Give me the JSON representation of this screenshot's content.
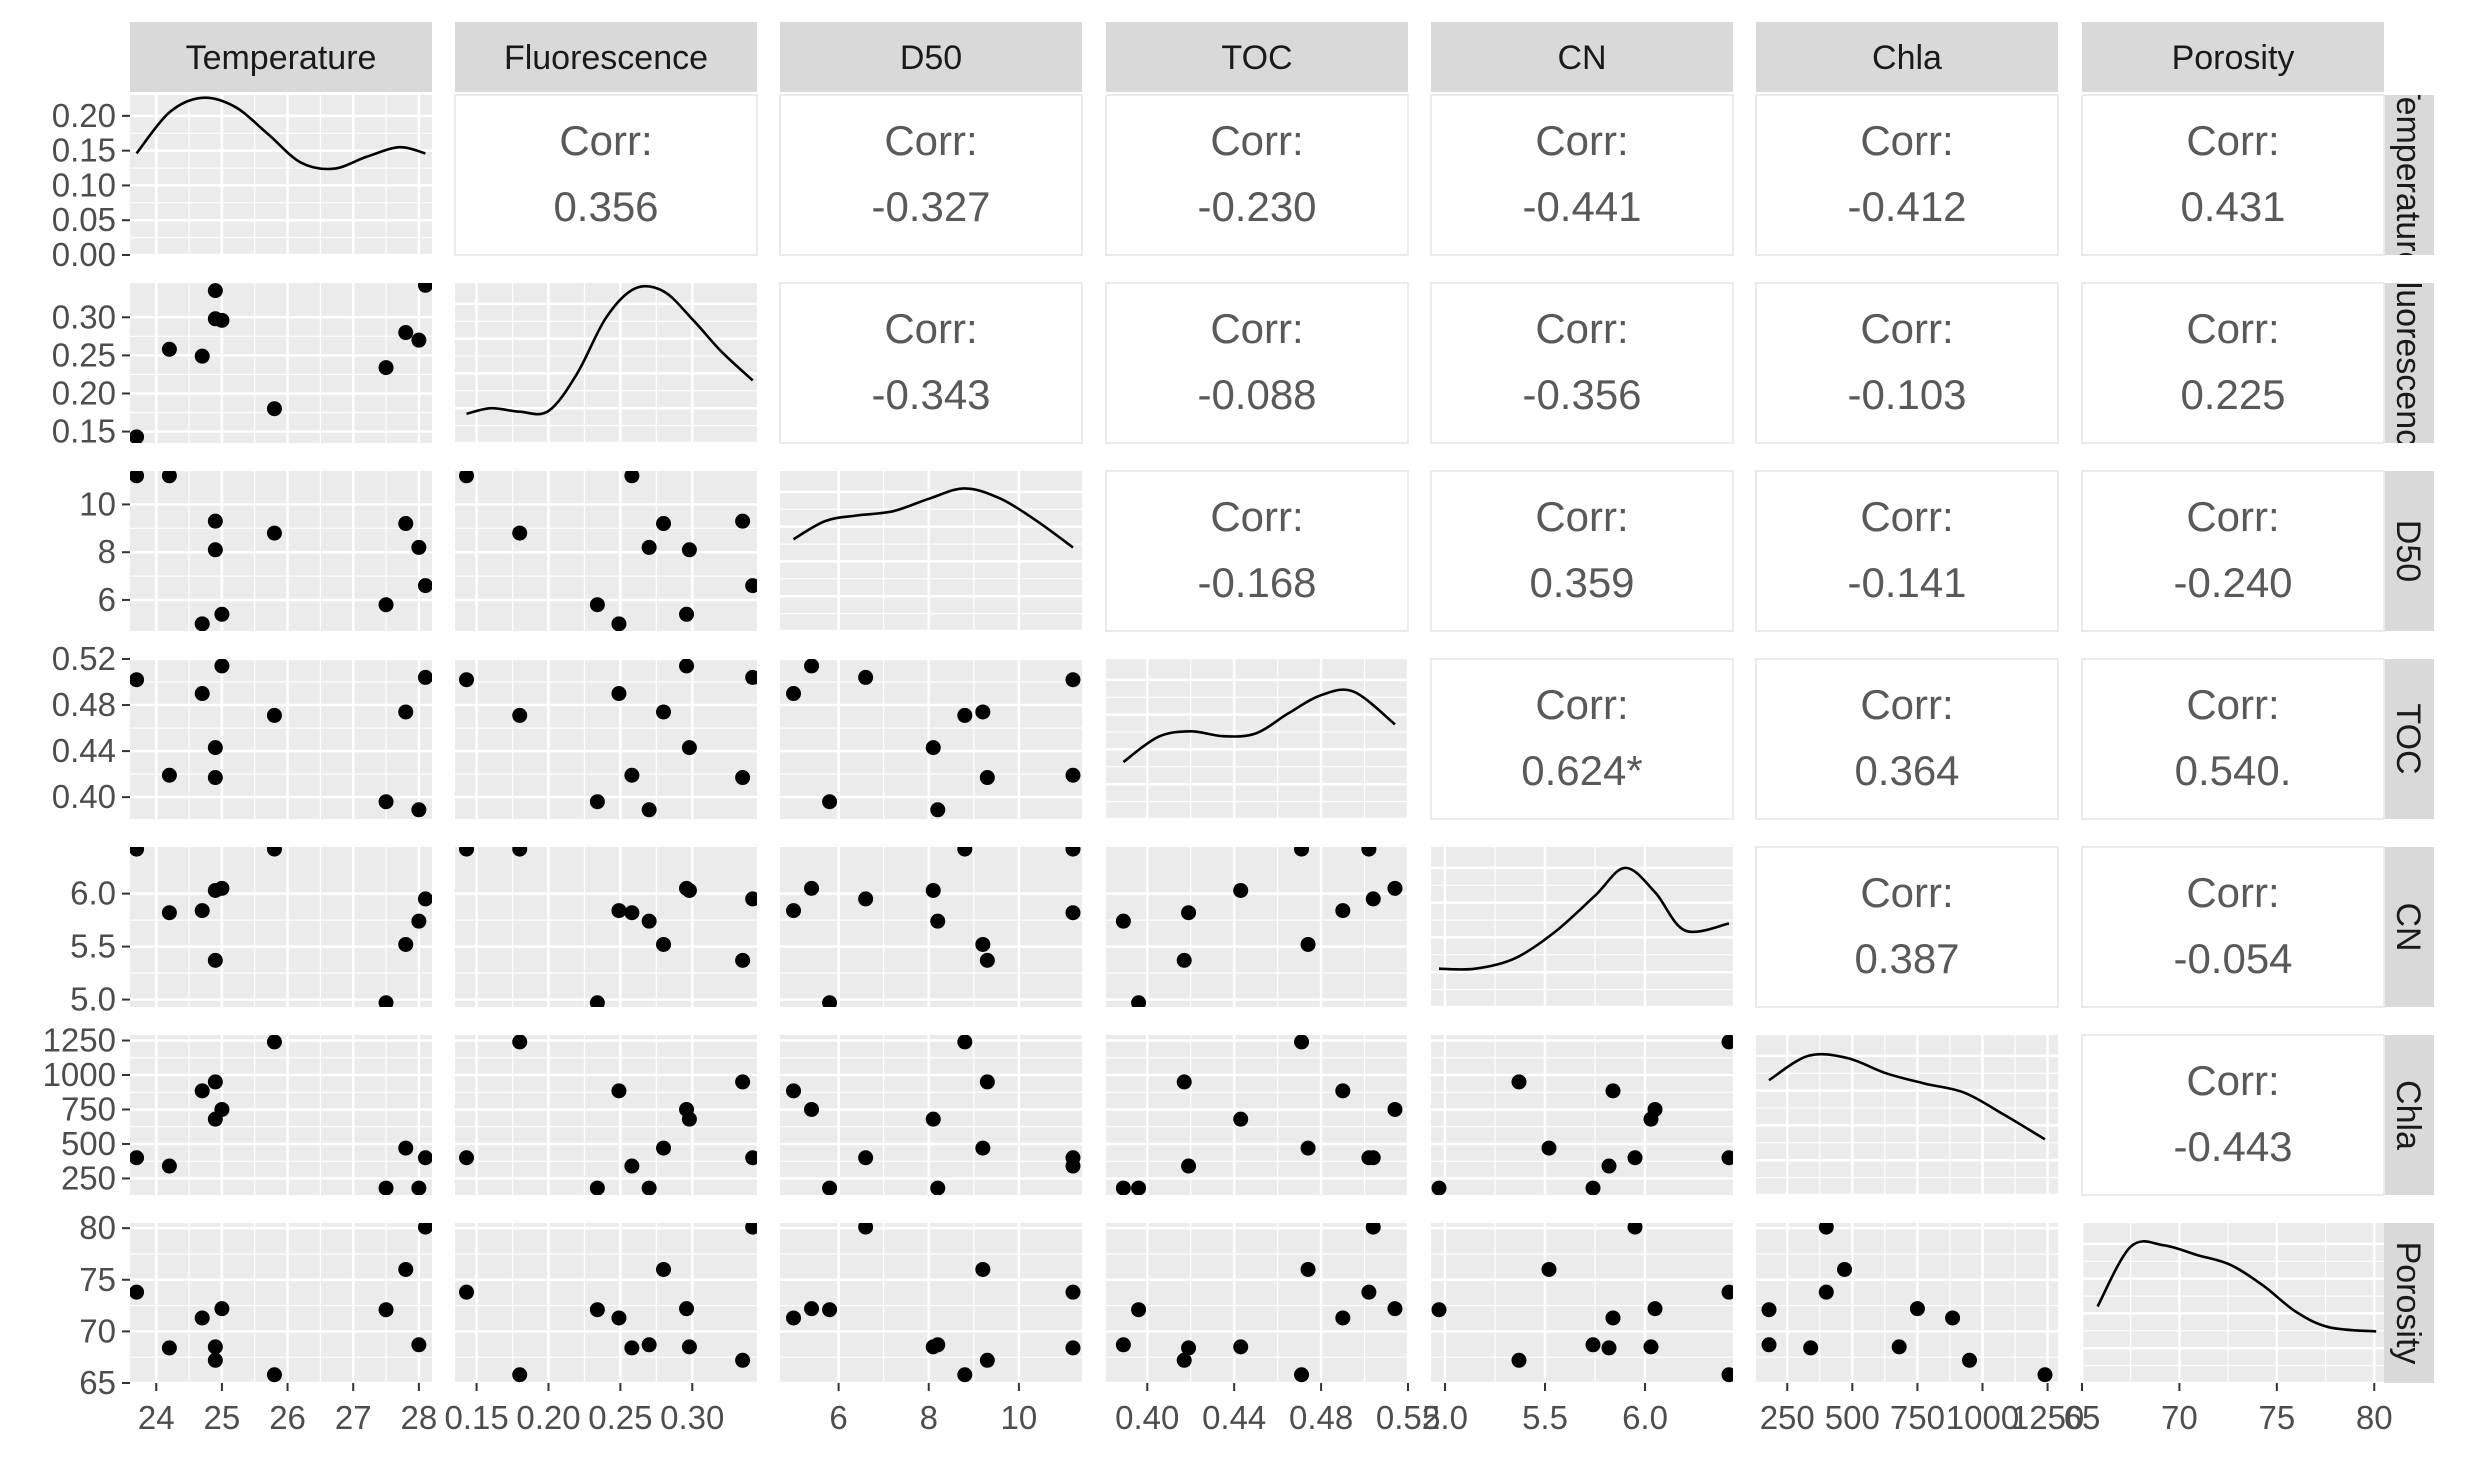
{
  "chart_data": {
    "type": "scatter",
    "variables": [
      "Temperature",
      "Fluorescence",
      "D50",
      "TOC",
      "CN",
      "Chla",
      "Porosity"
    ],
    "corr_label": "Corr:",
    "correlations": [
      [
        null,
        "0.356",
        "-0.327",
        "-0.230",
        "-0.441",
        "-0.412",
        "0.431"
      ],
      [
        null,
        null,
        "-0.343",
        "-0.088",
        "-0.356",
        "-0.103",
        "0.225"
      ],
      [
        null,
        null,
        null,
        "-0.168",
        "0.359",
        "-0.141",
        "-0.240"
      ],
      [
        null,
        null,
        null,
        null,
        "0.624*",
        "0.364",
        "0.540."
      ],
      [
        null,
        null,
        null,
        null,
        null,
        "0.387",
        "-0.054"
      ],
      [
        null,
        null,
        null,
        null,
        null,
        null,
        "-0.443"
      ],
      [
        null,
        null,
        null,
        null,
        null,
        null,
        null
      ]
    ],
    "axes": [
      {
        "name": "Temperature",
        "range": [
          23.6,
          28.2
        ],
        "ticks": [
          24,
          25,
          26,
          27,
          28
        ],
        "tick_labels": [
          "24",
          "25",
          "26",
          "27",
          "28"
        ]
      },
      {
        "name": "Fluorescence",
        "range": [
          0.135,
          0.345
        ],
        "ticks": [
          0.15,
          0.2,
          0.25,
          0.3
        ],
        "tick_labels": [
          "0.15",
          "0.20",
          "0.25",
          "0.30"
        ]
      },
      {
        "name": "D50",
        "range": [
          4.7,
          11.4
        ],
        "ticks": [
          6,
          8,
          10
        ],
        "tick_labels": [
          "6",
          "8",
          "10"
        ]
      },
      {
        "name": "TOC",
        "range": [
          0.381,
          0.52
        ],
        "ticks": [
          0.4,
          0.44,
          0.48,
          0.52
        ],
        "tick_labels": [
          "0.40",
          "0.44",
          "0.48",
          "0.52"
        ]
      },
      {
        "name": "CN",
        "range": [
          4.93,
          6.44
        ],
        "ticks": [
          5.0,
          5.5,
          6.0
        ],
        "tick_labels": [
          "5.0",
          "5.5",
          "6.0"
        ]
      },
      {
        "name": "Chla",
        "range": [
          130,
          1290
        ],
        "ticks": [
          250,
          500,
          750,
          1000,
          1250
        ],
        "tick_labels": [
          "250",
          "500",
          "750",
          "1000",
          "1250"
        ]
      },
      {
        "name": "Porosity",
        "range": [
          65,
          80.5
        ],
        "ticks": [
          65,
          70,
          75,
          80
        ],
        "tick_labels": [
          "65",
          "70",
          "75",
          "80"
        ]
      }
    ],
    "diag_y_axis": {
      "range": [
        0,
        0.23
      ],
      "ticks": [
        0,
        0.05,
        0.1,
        0.15,
        0.2
      ],
      "tick_labels": [
        "0.00",
        "0.05",
        "0.10",
        "0.15",
        "0.20"
      ]
    },
    "observations": [
      {
        "Temperature": 23.7,
        "Fluorescence": 0.143,
        "D50": 11.2,
        "TOC": 0.502,
        "CN": 6.42,
        "Chla": 400,
        "Porosity": 73.8
      },
      {
        "Temperature": 24.2,
        "Fluorescence": 0.258,
        "D50": 11.2,
        "TOC": 0.419,
        "CN": 5.82,
        "Chla": 340,
        "Porosity": 68.4
      },
      {
        "Temperature": 24.7,
        "Fluorescence": 0.249,
        "D50": 5.0,
        "TOC": 0.49,
        "CN": 5.84,
        "Chla": 885,
        "Porosity": 71.3
      },
      {
        "Temperature": 24.9,
        "Fluorescence": 0.298,
        "D50": 8.1,
        "TOC": 0.443,
        "CN": 6.03,
        "Chla": 680,
        "Porosity": 68.5
      },
      {
        "Temperature": 24.9,
        "Fluorescence": 0.335,
        "D50": 9.3,
        "TOC": 0.417,
        "CN": 5.37,
        "Chla": 950,
        "Porosity": 67.2
      },
      {
        "Temperature": 25.0,
        "Fluorescence": 0.296,
        "D50": 5.4,
        "TOC": 0.514,
        "CN": 6.05,
        "Chla": 750,
        "Porosity": 72.2
      },
      {
        "Temperature": 25.8,
        "Fluorescence": 0.18,
        "D50": 8.8,
        "TOC": 0.471,
        "CN": 6.42,
        "Chla": 1240,
        "Porosity": 65.8
      },
      {
        "Temperature": 27.5,
        "Fluorescence": 0.234,
        "D50": 5.8,
        "TOC": 0.396,
        "CN": 4.97,
        "Chla": 180,
        "Porosity": 72.1
      },
      {
        "Temperature": 27.8,
        "Fluorescence": 0.28,
        "D50": 9.2,
        "TOC": 0.474,
        "CN": 5.52,
        "Chla": 470,
        "Porosity": 76.0
      },
      {
        "Temperature": 28.0,
        "Fluorescence": 0.27,
        "D50": 8.2,
        "TOC": 0.389,
        "CN": 5.74,
        "Chla": 180,
        "Porosity": 68.7
      },
      {
        "Temperature": 28.1,
        "Fluorescence": 0.342,
        "D50": 6.6,
        "TOC": 0.504,
        "CN": 5.95,
        "Chla": 400,
        "Porosity": 80.1
      }
    ],
    "densities": [
      {
        "x": [
          23.7,
          24.2,
          24.7,
          25.2,
          25.7,
          26.2,
          26.7,
          27.2,
          27.7,
          28.1
        ],
        "y": [
          0.146,
          0.205,
          0.226,
          0.213,
          0.174,
          0.133,
          0.124,
          0.141,
          0.155,
          0.146
        ]
      },
      {
        "x": [
          0.143,
          0.16,
          0.18,
          0.2,
          0.22,
          0.24,
          0.26,
          0.28,
          0.3,
          0.32,
          0.342
        ],
        "y": [
          0.042,
          0.05,
          0.045,
          0.046,
          0.1,
          0.18,
          0.222,
          0.218,
          0.178,
          0.132,
          0.09
        ]
      },
      {
        "x": [
          5.0,
          5.7,
          6.4,
          7.2,
          8.0,
          8.8,
          9.6,
          10.4,
          11.2
        ],
        "y": [
          0.132,
          0.158,
          0.166,
          0.172,
          0.19,
          0.205,
          0.19,
          0.158,
          0.12
        ]
      },
      {
        "x": [
          0.389,
          0.405,
          0.42,
          0.435,
          0.45,
          0.465,
          0.48,
          0.495,
          0.514
        ],
        "y": [
          0.082,
          0.118,
          0.126,
          0.119,
          0.123,
          0.152,
          0.178,
          0.183,
          0.136
        ]
      },
      {
        "x": [
          4.97,
          5.15,
          5.35,
          5.55,
          5.75,
          5.9,
          6.05,
          6.2,
          6.42
        ],
        "y": [
          0.055,
          0.055,
          0.07,
          0.108,
          0.16,
          0.2,
          0.165,
          0.11,
          0.12
        ]
      },
      {
        "x": [
          180,
          330,
          480,
          630,
          780,
          930,
          1080,
          1240
        ],
        "y": [
          0.165,
          0.2,
          0.197,
          0.175,
          0.16,
          0.147,
          0.116,
          0.08
        ]
      },
      {
        "x": [
          65.8,
          67.5,
          69.2,
          70.9,
          72.6,
          74.3,
          76.0,
          77.7,
          80.1
        ],
        "y": [
          0.11,
          0.196,
          0.198,
          0.184,
          0.17,
          0.14,
          0.102,
          0.08,
          0.074
        ]
      }
    ],
    "grid": true,
    "legend": "none"
  }
}
